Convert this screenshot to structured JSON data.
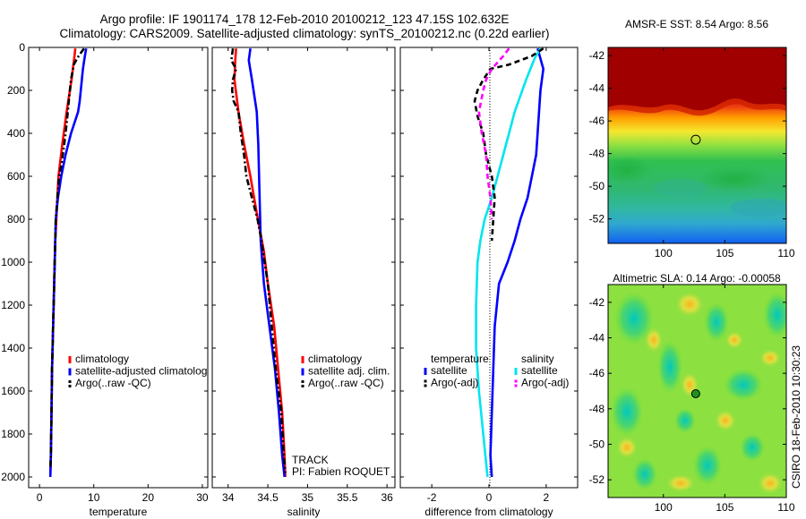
{
  "figure": {
    "title_line1": "Argo profile: IF 1901174_178 12-Feb-2010 20100212_123 47.15S 102.632E",
    "title_line2": "Climatology: CARS2009. Satellite-adjusted climatology: synTS_20100212.nc (0.22d earlier)",
    "credit": "CSIRO 18-Feb-2010 10:30:23",
    "track_label": "TRACK",
    "pi_label": "PI: Fabien ROQUET"
  },
  "colors": {
    "climatology": "#ff0000",
    "satellite": "#0000ff",
    "argo": "#000000",
    "sal_satellite": "#00e5ee",
    "sal_argo": "#ff00ff"
  },
  "chart_data": [
    {
      "id": "temperature",
      "type": "line",
      "xlabel": "temperature",
      "xlim": [
        -2,
        31
      ],
      "ylim": [
        2050,
        0
      ],
      "xticks": [
        0,
        10,
        20,
        30
      ],
      "yticks": [
        0,
        200,
        400,
        600,
        800,
        1000,
        1200,
        1400,
        1600,
        1800,
        2000
      ],
      "legend": [
        "climatology",
        "satellite-adjusted climatolog",
        "Argo(..raw -QC)"
      ],
      "series": [
        {
          "name": "climatology",
          "color": "#ff0000",
          "dash": "solid",
          "points": [
            [
              6.6,
              5
            ],
            [
              6.4,
              50
            ],
            [
              5.9,
              150
            ],
            [
              5.0,
              300
            ],
            [
              4.2,
              450
            ],
            [
              3.5,
              600
            ],
            [
              3.2,
              750
            ],
            [
              2.9,
              900
            ],
            [
              2.7,
              1100
            ],
            [
              2.5,
              1300
            ],
            [
              2.3,
              1500
            ],
            [
              2.2,
              1700
            ],
            [
              2.1,
              1900
            ],
            [
              2.0,
              1990
            ]
          ]
        },
        {
          "name": "satellite-adjusted climatolog",
          "color": "#0000ff",
          "dash": "solid",
          "points": [
            [
              8.6,
              5
            ],
            [
              8.3,
              50
            ],
            [
              8.0,
              100
            ],
            [
              7.8,
              150
            ],
            [
              7.6,
              200
            ],
            [
              7.4,
              250
            ],
            [
              7.1,
              300
            ],
            [
              5.8,
              400
            ],
            [
              4.8,
              500
            ],
            [
              4.0,
              600
            ],
            [
              3.4,
              700
            ],
            [
              3.0,
              800
            ],
            [
              2.9,
              900
            ],
            [
              2.7,
              1100
            ],
            [
              2.5,
              1300
            ],
            [
              2.3,
              1500
            ],
            [
              2.2,
              1700
            ],
            [
              2.1,
              1900
            ],
            [
              2.0,
              2000
            ]
          ]
        },
        {
          "name": "Argo(..raw -QC)",
          "color": "#000000",
          "dash": "dashdot",
          "points": [
            [
              8.2,
              5
            ],
            [
              7.2,
              40
            ],
            [
              6.3,
              80
            ],
            [
              5.8,
              150
            ],
            [
              5.4,
              250
            ],
            [
              5.1,
              330
            ],
            [
              4.8,
              400
            ],
            [
              4.4,
              480
            ],
            [
              4.0,
              550
            ],
            [
              3.6,
              600
            ],
            [
              3.3,
              700
            ],
            [
              3.0,
              800
            ],
            [
              2.9,
              900
            ],
            [
              2.7,
              1100
            ],
            [
              2.5,
              1300
            ],
            [
              2.3,
              1500
            ],
            [
              2.2,
              1700
            ],
            [
              2.1,
              1900
            ],
            [
              2.0,
              1960
            ]
          ]
        }
      ]
    },
    {
      "id": "salinity",
      "type": "line",
      "xlabel": "salinity",
      "xlim": [
        33.8,
        36.1
      ],
      "ylim": [
        2050,
        0
      ],
      "xticks": [
        34,
        34.5,
        35,
        35.5,
        36
      ],
      "xticklabels": [
        "34",
        "34.5",
        "35",
        "35.5",
        "36"
      ],
      "legend": [
        "climatology",
        "satellite adj. clim.",
        "Argo(..raw -QC)"
      ],
      "series": [
        {
          "name": "climatology",
          "color": "#ff0000",
          "dash": "solid",
          "points": [
            [
              34.1,
              5
            ],
            [
              34.09,
              60
            ],
            [
              34.08,
              150
            ],
            [
              34.13,
              300
            ],
            [
              34.2,
              450
            ],
            [
              34.28,
              600
            ],
            [
              34.35,
              750
            ],
            [
              34.4,
              850
            ],
            [
              34.45,
              950
            ],
            [
              34.5,
              1100
            ],
            [
              34.58,
              1300
            ],
            [
              34.63,
              1500
            ],
            [
              34.68,
              1700
            ],
            [
              34.71,
              1900
            ],
            [
              34.72,
              2000
            ]
          ]
        },
        {
          "name": "satellite adj. clim.",
          "color": "#0000ff",
          "dash": "solid",
          "points": [
            [
              34.28,
              5
            ],
            [
              34.26,
              60
            ],
            [
              34.3,
              150
            ],
            [
              34.36,
              300
            ],
            [
              34.38,
              450
            ],
            [
              34.39,
              600
            ],
            [
              34.4,
              750
            ],
            [
              34.41,
              900
            ],
            [
              34.45,
              1100
            ],
            [
              34.52,
              1300
            ],
            [
              34.59,
              1500
            ],
            [
              34.64,
              1700
            ],
            [
              34.68,
              1900
            ],
            [
              34.71,
              2000
            ]
          ]
        },
        {
          "name": "Argo(..raw -QC)",
          "color": "#000000",
          "dash": "dashdot",
          "points": [
            [
              34.06,
              5
            ],
            [
              34.04,
              60
            ],
            [
              34.1,
              100
            ],
            [
              34.06,
              150
            ],
            [
              34.05,
              200
            ],
            [
              34.07,
              250
            ],
            [
              34.13,
              300
            ],
            [
              34.16,
              400
            ],
            [
              34.2,
              500
            ],
            [
              34.23,
              600
            ],
            [
              34.3,
              700
            ],
            [
              34.37,
              800
            ],
            [
              34.42,
              900
            ],
            [
              34.46,
              1000
            ],
            [
              34.5,
              1100
            ],
            [
              34.55,
              1300
            ],
            [
              34.6,
              1500
            ],
            [
              34.67,
              1700
            ],
            [
              34.7,
              1900
            ],
            [
              34.72,
              1980
            ]
          ]
        }
      ]
    },
    {
      "id": "difference",
      "type": "line",
      "xlabel": "difference from climatology",
      "xlim": [
        -3.1,
        3.1
      ],
      "ylim": [
        2050,
        0
      ],
      "xticks": [
        -2,
        0,
        2
      ],
      "legend_temperature_title": "temperature",
      "legend_salinity_title": "salinity",
      "legend": [
        "satellite",
        "Argo(-adj)",
        "satellite",
        "Argo(-adj)"
      ],
      "series": [
        {
          "name": "satellite",
          "group": "temperature",
          "color": "#0000ff",
          "dash": "solid",
          "points": [
            [
              1.7,
              5
            ],
            [
              1.9,
              100
            ],
            [
              1.8,
              200
            ],
            [
              1.75,
              300
            ],
            [
              1.7,
              400
            ],
            [
              1.65,
              500
            ],
            [
              1.5,
              600
            ],
            [
              1.35,
              700
            ],
            [
              1.1,
              800
            ],
            [
              0.9,
              900
            ],
            [
              0.65,
              1000
            ],
            [
              0.35,
              1100
            ],
            [
              0.2,
              1300
            ],
            [
              0.15,
              1500
            ],
            [
              0.1,
              1700
            ],
            [
              0.05,
              1900
            ],
            [
              0.1,
              2000
            ]
          ]
        },
        {
          "name": "satellite",
          "group": "salinity",
          "color": "#00e5ee",
          "dash": "solid",
          "points": [
            [
              1.8,
              5
            ],
            [
              1.6,
              50
            ],
            [
              1.3,
              150
            ],
            [
              0.9,
              300
            ],
            [
              0.7,
              400
            ],
            [
              0.5,
              500
            ],
            [
              0.3,
              600
            ],
            [
              0.1,
              700
            ],
            [
              -0.15,
              800
            ],
            [
              -0.3,
              900
            ],
            [
              -0.4,
              1000
            ],
            [
              -0.45,
              1200
            ],
            [
              -0.45,
              1400
            ],
            [
              -0.35,
              1600
            ],
            [
              -0.2,
              1800
            ],
            [
              -0.05,
              2000
            ]
          ]
        },
        {
          "name": "Argo(-adj)",
          "group": "temperature",
          "color": "#000000",
          "dash": "dashed",
          "points": [
            [
              1.9,
              5
            ],
            [
              1.5,
              40
            ],
            [
              0.7,
              80
            ],
            [
              0.05,
              100
            ],
            [
              -0.2,
              150
            ],
            [
              -0.4,
              200
            ],
            [
              -0.5,
              250
            ],
            [
              -0.4,
              320
            ],
            [
              -0.2,
              400
            ],
            [
              -0.1,
              500
            ],
            [
              0.1,
              600
            ],
            [
              0.2,
              700
            ],
            [
              0.15,
              800
            ],
            [
              0.1,
              900
            ]
          ]
        },
        {
          "name": "Argo(-adj)",
          "group": "salinity",
          "color": "#ff00ff",
          "dash": "dashed",
          "points": [
            [
              0.7,
              5
            ],
            [
              0.5,
              40
            ],
            [
              0.1,
              100
            ],
            [
              -0.1,
              150
            ],
            [
              -0.2,
              200
            ],
            [
              -0.35,
              300
            ],
            [
              -0.25,
              400
            ],
            [
              -0.1,
              500
            ],
            [
              -0.05,
              600
            ],
            [
              0.05,
              700
            ],
            [
              0.1,
              800
            ]
          ]
        }
      ]
    },
    {
      "id": "sst_map",
      "type": "heatmap",
      "title": "AMSR-E SST: 8.54 Argo: 8.56",
      "xlim": [
        95.5,
        110
      ],
      "ylim": [
        -53.5,
        -41.5
      ],
      "xticks": [
        100,
        105,
        110
      ],
      "yticks": [
        -42,
        -44,
        -46,
        -48,
        -50,
        -52
      ],
      "marker": {
        "lon": 102.632,
        "lat": -47.15
      }
    },
    {
      "id": "sla_map",
      "type": "heatmap",
      "title": "Altimetric SLA: 0.14 Argo: -0.00058",
      "xlim": [
        95.5,
        110
      ],
      "ylim": [
        -53,
        -41
      ],
      "xticks": [
        100,
        105,
        110
      ],
      "yticks": [
        -42,
        -44,
        -46,
        -48,
        -50,
        -52
      ],
      "marker": {
        "lon": 102.632,
        "lat": -47.15
      }
    }
  ]
}
